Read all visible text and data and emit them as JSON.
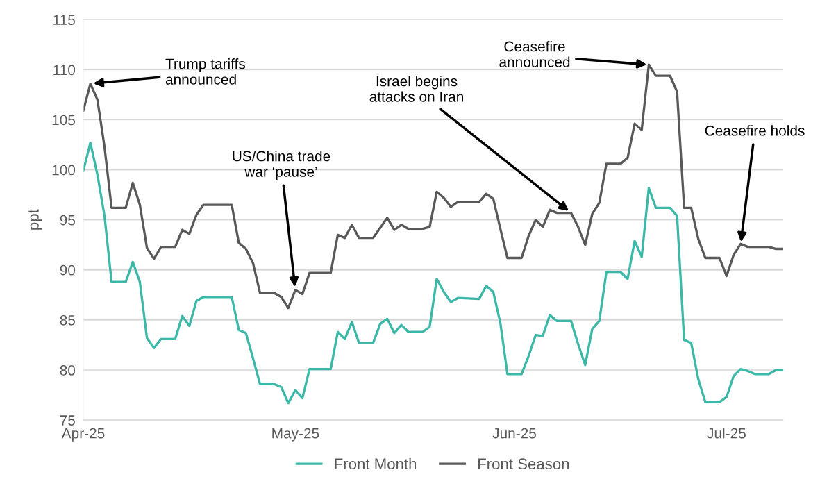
{
  "chart_data": {
    "type": "line",
    "ylabel": "ppt",
    "x": [
      "2025-04-01",
      "2025-04-02",
      "2025-04-03",
      "2025-04-04",
      "2025-04-05",
      "2025-04-07",
      "2025-04-08",
      "2025-04-09",
      "2025-04-10",
      "2025-04-11",
      "2025-04-12",
      "2025-04-14",
      "2025-04-15",
      "2025-04-16",
      "2025-04-17",
      "2025-04-18",
      "2025-04-22",
      "2025-04-23",
      "2025-04-24",
      "2025-04-25",
      "2025-04-26",
      "2025-04-28",
      "2025-04-29",
      "2025-04-30",
      "2025-05-01",
      "2025-05-02",
      "2025-05-03",
      "2025-05-06",
      "2025-05-07",
      "2025-05-08",
      "2025-05-09",
      "2025-05-10",
      "2025-05-12",
      "2025-05-13",
      "2025-05-14",
      "2025-05-15",
      "2025-05-16",
      "2025-05-17",
      "2025-05-19",
      "2025-05-20",
      "2025-05-21",
      "2025-05-22",
      "2025-05-23",
      "2025-05-24",
      "2025-05-27",
      "2025-05-28",
      "2025-05-29",
      "2025-05-30",
      "2025-05-31",
      "2025-06-02",
      "2025-06-03",
      "2025-06-04",
      "2025-06-05",
      "2025-06-06",
      "2025-06-07",
      "2025-06-09",
      "2025-06-10",
      "2025-06-11",
      "2025-06-12",
      "2025-06-13",
      "2025-06-14",
      "2025-06-16",
      "2025-06-17",
      "2025-06-18",
      "2025-06-19",
      "2025-06-20",
      "2025-06-21",
      "2025-06-23",
      "2025-06-24",
      "2025-06-25",
      "2025-06-26",
      "2025-06-27",
      "2025-06-28",
      "2025-06-30",
      "2025-07-01",
      "2025-07-02",
      "2025-07-03",
      "2025-07-04",
      "2025-07-05",
      "2025-07-07",
      "2025-07-08",
      "2025-07-09"
    ],
    "series": [
      {
        "name": "Front Month",
        "color": "#3cb8a8",
        "values": [
          99.9,
          102.7,
          99.5,
          95.4,
          88.8,
          88.8,
          90.8,
          88.8,
          83.2,
          82.2,
          83.1,
          83.1,
          85.4,
          84.4,
          86.9,
          87.3,
          87.3,
          84.0,
          83.7,
          81.2,
          78.6,
          78.6,
          78.3,
          76.7,
          78.0,
          77.2,
          80.1,
          80.1,
          83.8,
          83.1,
          84.8,
          82.7,
          82.7,
          84.6,
          85.1,
          83.7,
          84.5,
          83.8,
          83.8,
          84.3,
          89.1,
          87.8,
          86.8,
          87.2,
          87.1,
          88.4,
          87.8,
          84.7,
          79.6,
          79.6,
          81.4,
          83.5,
          83.4,
          85.5,
          84.9,
          84.9,
          82.6,
          80.5,
          84.1,
          84.9,
          89.8,
          89.8,
          89.1,
          92.9,
          91.3,
          98.2,
          96.2,
          96.2,
          95.4,
          83.0,
          82.7,
          79.1,
          76.8,
          76.8,
          77.3,
          79.4,
          80.1,
          79.9,
          79.6,
          79.6,
          80.0,
          80.0
        ]
      },
      {
        "name": "Front Season",
        "color": "#595959",
        "values": [
          105.9,
          108.6,
          107.0,
          102.3,
          96.2,
          96.2,
          98.7,
          96.5,
          92.2,
          91.1,
          92.3,
          92.3,
          94.0,
          93.6,
          95.5,
          96.5,
          96.5,
          92.7,
          92.1,
          90.7,
          87.7,
          87.7,
          87.3,
          86.2,
          88.0,
          87.6,
          89.7,
          89.7,
          93.5,
          93.2,
          94.5,
          93.2,
          93.2,
          94.2,
          95.2,
          94.0,
          94.5,
          94.1,
          94.1,
          94.3,
          97.8,
          97.2,
          96.3,
          96.8,
          96.8,
          97.6,
          97.1,
          94.1,
          91.2,
          91.2,
          93.4,
          95.0,
          94.3,
          96.0,
          95.7,
          95.7,
          94.3,
          92.5,
          95.6,
          96.7,
          100.6,
          100.6,
          101.2,
          104.6,
          104.0,
          110.5,
          109.4,
          109.4,
          107.8,
          96.2,
          96.2,
          93.1,
          91.2,
          91.2,
          89.4,
          91.5,
          92.6,
          92.3,
          92.3,
          92.3,
          92.1,
          92.1
        ]
      }
    ],
    "xlim": [
      "2025-04-01",
      "2025-07-09"
    ],
    "xticks": [
      {
        "value": "2025-04-01",
        "label": "Apr-25"
      },
      {
        "value": "2025-05-01",
        "label": "May-25"
      },
      {
        "value": "2025-06-01",
        "label": "Jun-25"
      },
      {
        "value": "2025-07-01",
        "label": "Jul-25"
      }
    ],
    "ylim": [
      75,
      115
    ],
    "yticks": [
      75,
      80,
      85,
      90,
      95,
      100,
      105,
      110,
      115
    ],
    "grid": "y",
    "legend": "bottom",
    "marker": "none",
    "line_style": "solid",
    "annotations": [
      {
        "text": "Trump tariffs\nannounced",
        "x": "2025-04-02",
        "y": 108.6
      },
      {
        "text": "US/China trade\nwar ‘pause’",
        "x": "2025-05-01",
        "y": 88.0
      },
      {
        "text": "Israel begins\nattacks on Iran",
        "x": "2025-06-09",
        "y": 95.7
      },
      {
        "text": "Ceasefire\nannounced",
        "x": "2025-06-20",
        "y": 110.5
      },
      {
        "text": "Ceasefire holds",
        "x": "2025-07-03",
        "y": 92.6
      }
    ]
  }
}
